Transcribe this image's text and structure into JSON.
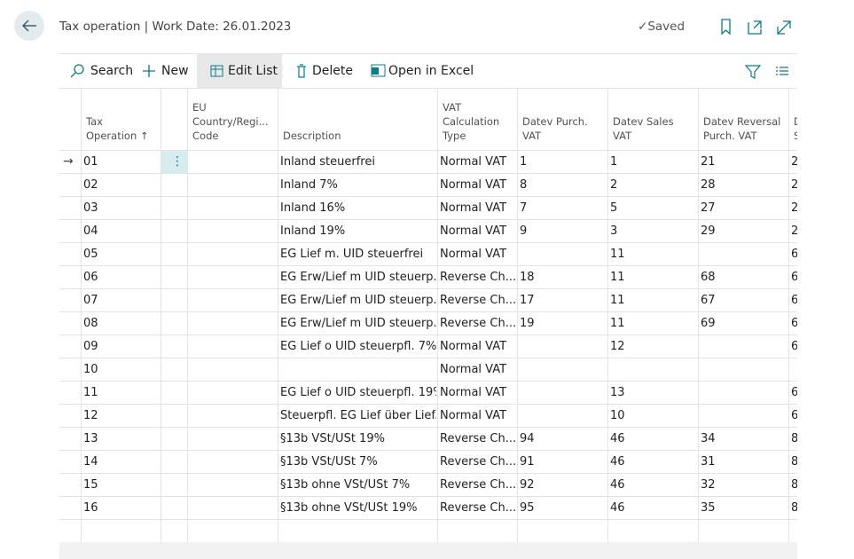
{
  "header": {
    "title": "Tax operation | Work Date: 26.01.2023",
    "status": "Saved"
  },
  "toolbar": [
    "Search",
    "New",
    "Edit List",
    "Delete",
    "Open in Excel"
  ],
  "table": {
    "columns": [
      {
        "header_lines": [
          "Tax",
          "Operation ↑"
        ]
      },
      {
        "header_lines": [
          "EU",
          "Country/Regi...",
          "Code"
        ]
      },
      {
        "header_lines": [
          "Description"
        ]
      },
      {
        "header_lines": [
          "VAT",
          "Calculation",
          "Type"
        ]
      },
      {
        "header_lines": [
          "Datev Purch.",
          "VAT"
        ]
      },
      {
        "header_lines": [
          "Datev Sales",
          "VAT"
        ]
      },
      {
        "header_lines": [
          "Datev Reversal",
          "Purch. VAT"
        ]
      },
      {
        "header_lines": [
          "D",
          "S"
        ]
      }
    ],
    "rows": [
      [
        "01",
        null,
        "Inland steuerfrei",
        "Normal VAT",
        "1",
        "1",
        "21",
        "2"
      ],
      [
        "02",
        null,
        "Inland 7%",
        "Normal VAT",
        "8",
        "2",
        "28",
        "2"
      ],
      [
        "03",
        null,
        "Inland 16%",
        "Normal VAT",
        "7",
        "5",
        "27",
        "2"
      ],
      [
        "04",
        null,
        "Inland 19%",
        "Normal VAT",
        "9",
        "3",
        "29",
        "2"
      ],
      [
        "05",
        null,
        "EG Lief m. UID steuerfrei",
        "Normal VAT",
        null,
        "11",
        null,
        "6"
      ],
      [
        "06",
        null,
        "EG Erw/Lief m UID steuerp...",
        "Reverse Ch...",
        "18",
        "11",
        "68",
        "6"
      ],
      [
        "07",
        null,
        "EG Erw/Lief m UID steuerp...",
        "Reverse Ch...",
        "17",
        "11",
        "67",
        "6"
      ],
      [
        "08",
        null,
        "EG Erw/Lief m UID steuerp...",
        "Reverse Ch...",
        "19",
        "11",
        "69",
        "6"
      ],
      [
        "09",
        null,
        "EG Lief o UID steuerpfl. 7%",
        "Normal VAT",
        null,
        "12",
        null,
        "6"
      ],
      [
        "10",
        null,
        null,
        "Normal VAT",
        null,
        null,
        null,
        null
      ],
      [
        "11",
        null,
        "EG Lief o UID steuerpfl. 19%",
        "Normal VAT",
        null,
        "13",
        null,
        "6"
      ],
      [
        "12",
        null,
        "Steuerpfl. EG Lief über Lief...",
        "Normal VAT",
        null,
        "10",
        null,
        "6"
      ],
      [
        "13",
        null,
        "§13b VSt/USt 19%",
        "Reverse Ch...",
        "94",
        "46",
        "34",
        "8"
      ],
      [
        "14",
        null,
        "§13b VSt/USt 7%",
        "Reverse Ch...",
        "91",
        "46",
        "31",
        "8"
      ],
      [
        "15",
        null,
        "§13b ohne VSt/USt 7%",
        "Reverse Ch...",
        "92",
        "46",
        "32",
        "8"
      ],
      [
        "16",
        null,
        "§13b ohne VSt/USt 19%",
        "Reverse Ch...",
        "95",
        "46",
        "35",
        "8"
      ]
    ]
  }
}
